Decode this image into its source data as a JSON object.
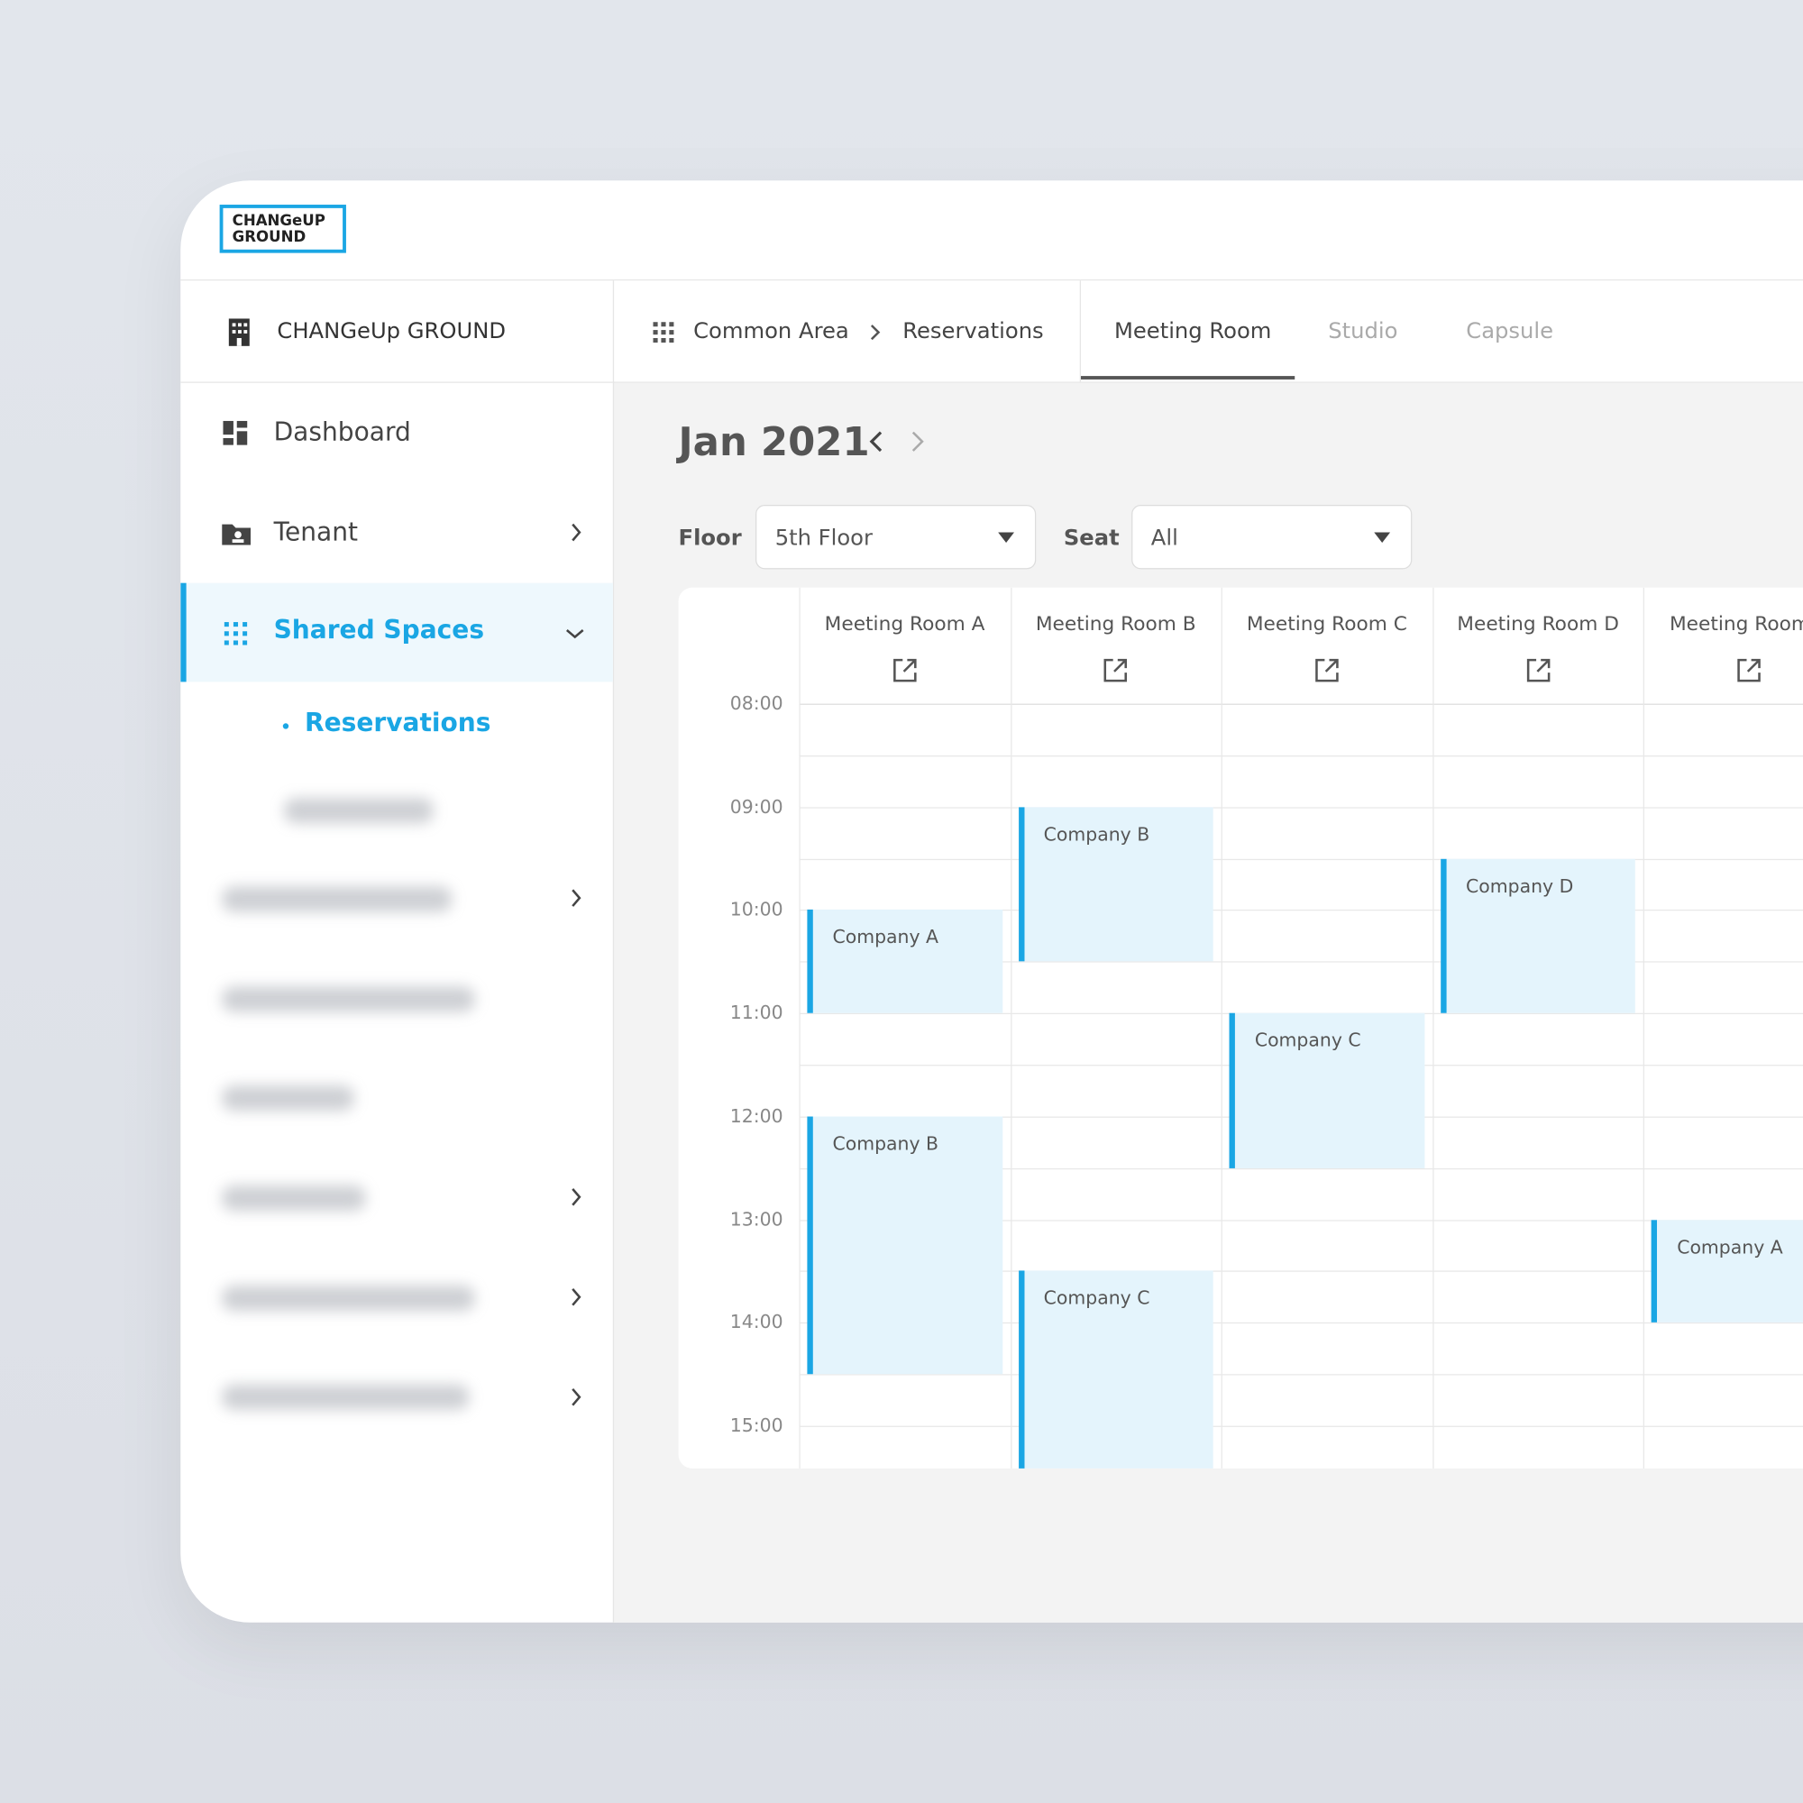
{
  "logo": {
    "line1": "CHANGeUP",
    "line2": "GROUND"
  },
  "workspace": "CHANGeUp GROUND",
  "sidebar": {
    "items": [
      {
        "label": "Dashboard"
      },
      {
        "label": "Tenant"
      },
      {
        "label": "Shared Spaces"
      }
    ],
    "subitems": [
      {
        "label": "Reservations"
      }
    ]
  },
  "breadcrumb": [
    "Common Area",
    "Reservations"
  ],
  "tabs": [
    "Meeting Room",
    "Studio",
    "Capsule"
  ],
  "month": "Jan 2021",
  "filters": [
    {
      "label": "Floor",
      "value": "5th Floor"
    },
    {
      "label": "Seat",
      "value": "All"
    }
  ],
  "rooms": [
    "Meeting Room A",
    "Meeting Room B",
    "Meeting Room C",
    "Meeting Room D",
    "Meeting Room E"
  ],
  "times": [
    "08:00",
    "09:00",
    "10:00",
    "11:00",
    "12:00",
    "13:00",
    "14:00",
    "15:00"
  ],
  "reservations": [
    {
      "room": 0,
      "company": "Company A",
      "start": 10,
      "end": 11
    },
    {
      "room": 0,
      "company": "Company B",
      "start": 12,
      "end": 14.5
    },
    {
      "room": 1,
      "company": "Company B",
      "start": 9,
      "end": 10.5
    },
    {
      "room": 1,
      "company": "Company C",
      "start": 13.5,
      "end": 15.5
    },
    {
      "room": 2,
      "company": "Company C",
      "start": 11,
      "end": 12.5
    },
    {
      "room": 3,
      "company": "Company D",
      "start": 9.5,
      "end": 11
    },
    {
      "room": 4,
      "company": "Company A",
      "start": 13,
      "end": 14
    }
  ]
}
